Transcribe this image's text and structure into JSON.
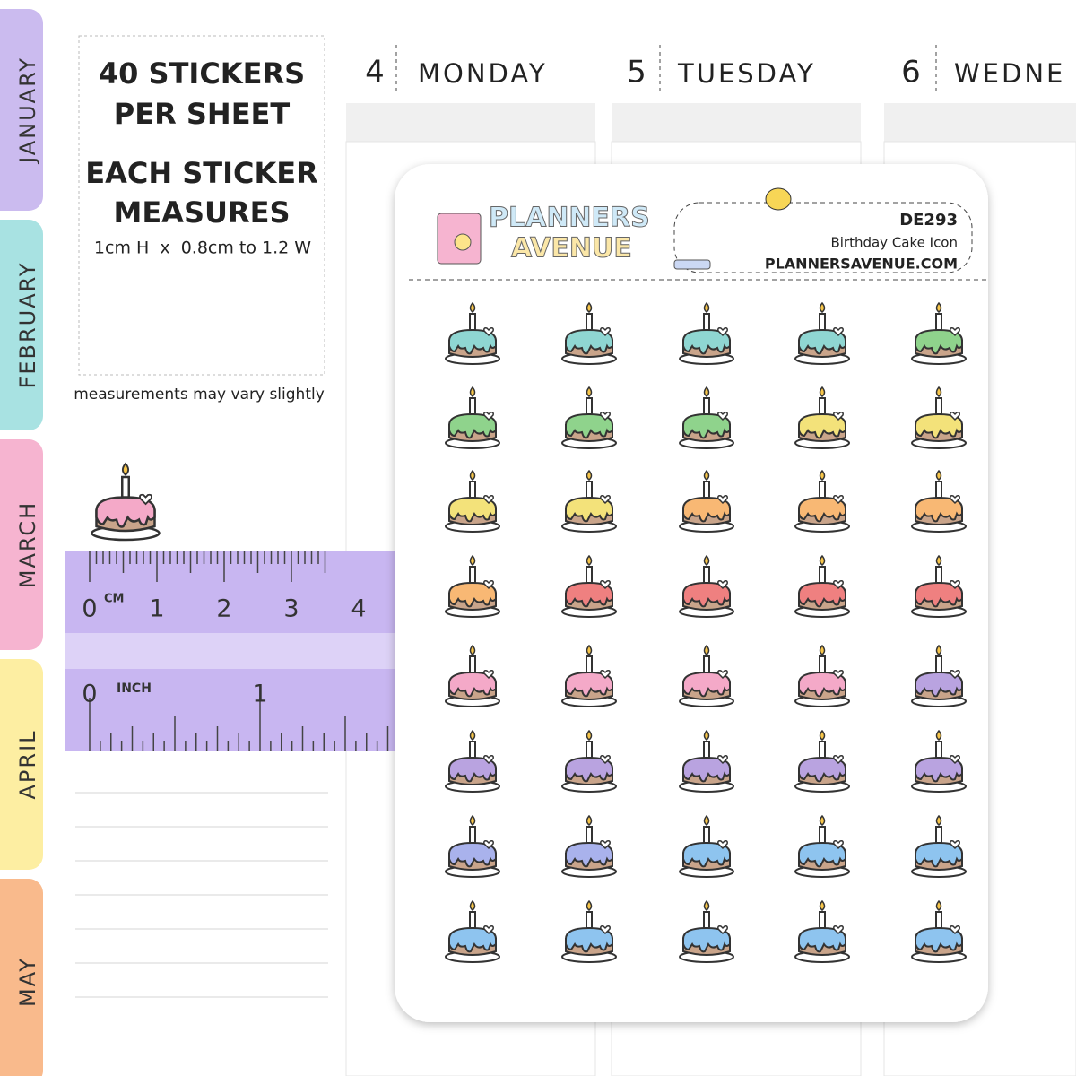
{
  "tabs": [
    "JANUARY",
    "FEBRUARY",
    "MARCH",
    "APRIL",
    "MAY"
  ],
  "tab_colors": [
    "#cbbbef",
    "#a8e2e2",
    "#f6b4d0",
    "#fdeea2",
    "#f9ba8c"
  ],
  "info": {
    "line1": "40 STICKERS",
    "line2": "PER SHEET",
    "line3": "EACH STICKER",
    "line4": "MEASURES",
    "size": "1cm H  x  0.8cm to 1.2 W",
    "note": "measurements may vary slightly"
  },
  "ruler": {
    "cm_labels": [
      "0",
      "1",
      "2",
      "3",
      "4"
    ],
    "cm_unit": "CM",
    "inch_labels": [
      "0",
      "1"
    ],
    "inch_unit": "INCH"
  },
  "days": [
    {
      "num": "4",
      "name": "MONDAY"
    },
    {
      "num": "5",
      "name": "TUESDAY"
    },
    {
      "num": "6",
      "name": "WEDNE"
    }
  ],
  "sample_color": "#f4a9c8",
  "sheet": {
    "brand_top": "PLANNERS",
    "brand_bottom": "AVENUE",
    "code": "DE293",
    "name": "Birthday Cake Icon",
    "url": "PLANNERSAVENUE.COM",
    "stickers": [
      "#8fd6d2",
      "#8fd6d2",
      "#8fd6d2",
      "#8fd6d2",
      "#8fd38c",
      "#8fd38c",
      "#8fd38c",
      "#8fd38c",
      "#f3e27a",
      "#f3e27a",
      "#f3e27a",
      "#f3e27a",
      "#f8b874",
      "#f8b874",
      "#f8b874",
      "#f8b874",
      "#ef8080",
      "#ef8080",
      "#ef8080",
      "#ef8080",
      "#f4a9c8",
      "#f4a9c8",
      "#f4a9c8",
      "#f4a9c8",
      "#b9a3e0",
      "#b9a3e0",
      "#b9a3e0",
      "#b9a3e0",
      "#b9a3e0",
      "#b9a3e0",
      "#a9b2ec",
      "#a9b2ec",
      "#8ec4ef",
      "#8ec4ef",
      "#8ec4ef",
      "#8ec4ef",
      "#8ec4ef",
      "#8ec4ef",
      "#8ec4ef",
      "#8ec4ef"
    ]
  }
}
